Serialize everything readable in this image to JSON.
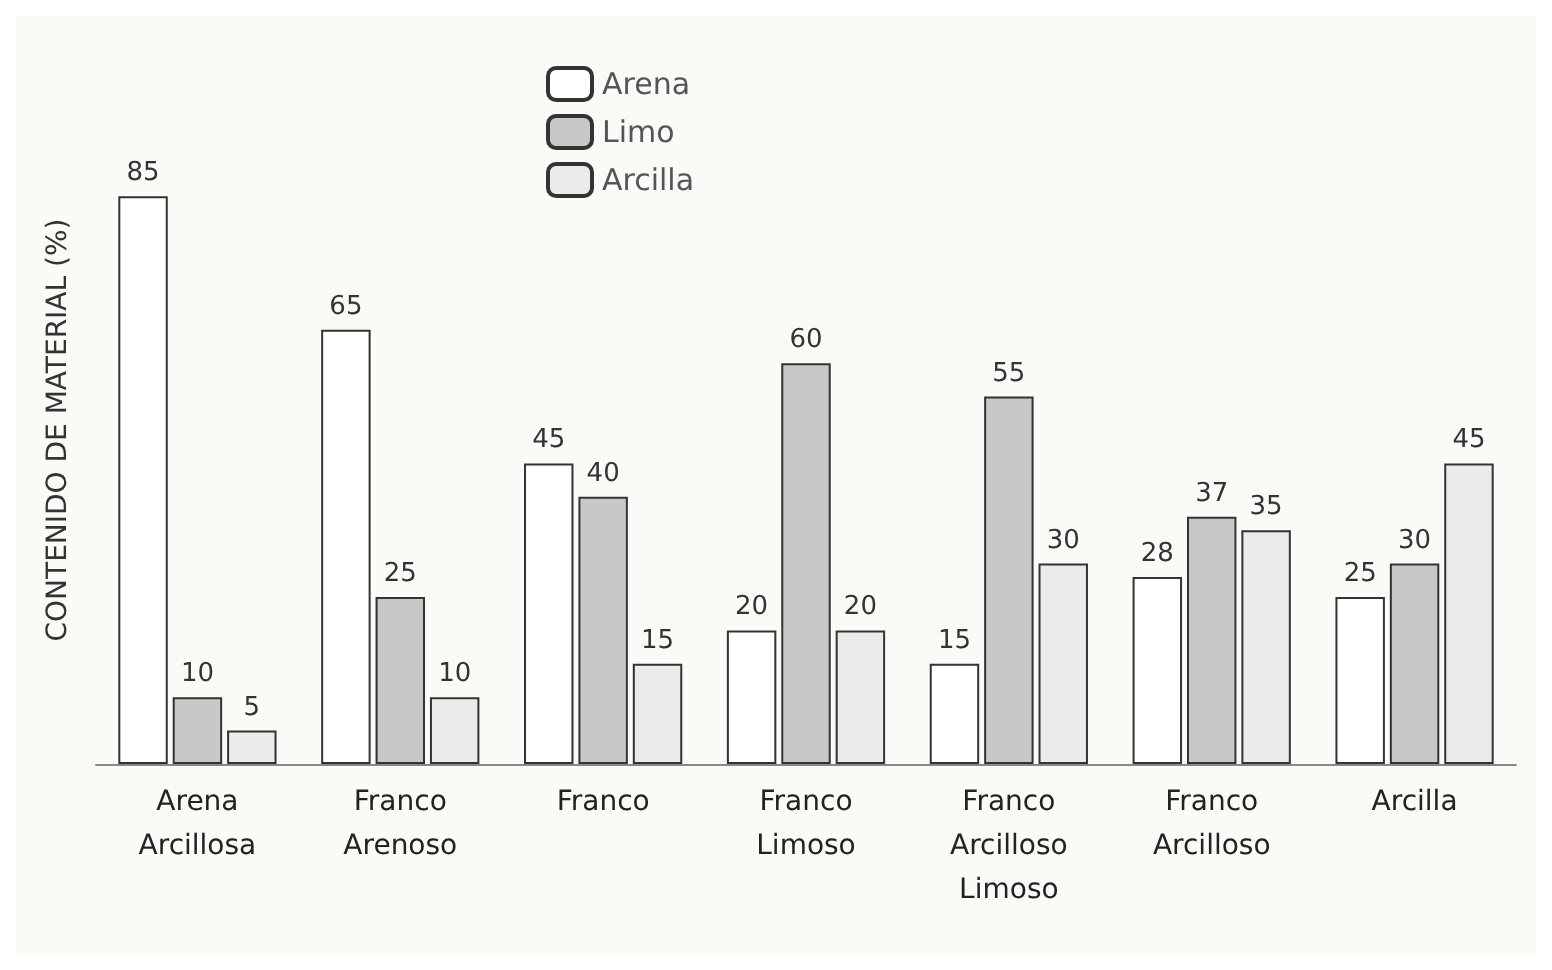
{
  "chart_data": {
    "type": "bar",
    "ylabel": "CONTENIDO DE MATERIAL (%)",
    "categories": [
      "Arena Arcillosa",
      "Franco Arenoso",
      "Franco",
      "Franco Limoso",
      "Franco Arcilloso Limoso",
      "Franco Arcilloso",
      "Arcilla"
    ],
    "series": [
      {
        "name": "Arena",
        "color": "#ffffff",
        "values": [
          85,
          65,
          45,
          20,
          15,
          28,
          25
        ]
      },
      {
        "name": "Limo",
        "color": "#c8c8c8",
        "values": [
          10,
          25,
          40,
          60,
          55,
          37,
          30
        ]
      },
      {
        "name": "Arcilla",
        "color": "#ebebeb",
        "values": [
          5,
          10,
          15,
          20,
          30,
          35,
          45
        ]
      }
    ],
    "data_labels": true,
    "legend": "top",
    "grid": false
  }
}
